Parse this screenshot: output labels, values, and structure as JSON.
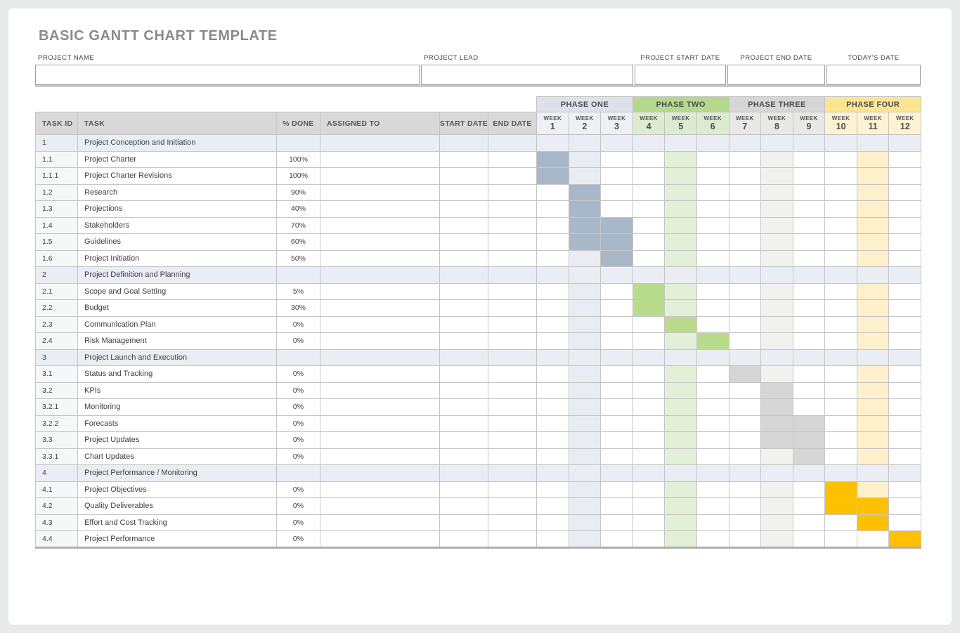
{
  "page": {
    "title": "BASIC GANTT CHART TEMPLATE"
  },
  "form": {
    "fields": [
      {
        "label": "PROJECT NAME",
        "value": ""
      },
      {
        "label": "PROJECT LEAD",
        "value": ""
      },
      {
        "label": "PROJECT START DATE",
        "value": ""
      },
      {
        "label": "PROJECT END DATE",
        "value": ""
      },
      {
        "label": "TODAY'S DATE",
        "value": ""
      }
    ]
  },
  "table": {
    "columns": [
      "TASK ID",
      "TASK",
      "% DONE",
      "ASSIGNED TO",
      "START DATE",
      "END DATE"
    ],
    "week_label": "WEEK",
    "header_bg": "#d9d9d9",
    "section_row_color": "#eaedf3",
    "task_id_col_color": "#f6f7f9",
    "phases": [
      {
        "label": "PHASE ONE",
        "weeks": [
          "1",
          "2",
          "3"
        ],
        "header_color": "#dde2ea",
        "week_header_color": "#eef0f4",
        "bar_color": "#a9b8c8",
        "shade_color": "#e9ecf2"
      },
      {
        "label": "PHASE TWO",
        "weeks": [
          "4",
          "5",
          "6"
        ],
        "header_color": "#b5d88c",
        "week_header_color": "#ddecd0",
        "bar_color": "#b9dc8c",
        "shade_color": "#e3efd6"
      },
      {
        "label": "PHASE THREE",
        "weeks": [
          "7",
          "8",
          "9"
        ],
        "header_color": "#d6d6d6",
        "week_header_color": "#e8e8e6",
        "bar_color": "#d6d6d6",
        "shade_color": "#f1f1ef"
      },
      {
        "label": "PHASE FOUR",
        "weeks": [
          "10",
          "11",
          "12"
        ],
        "header_color": "#fbe593",
        "week_header_color": "#fdf3d2",
        "bar_color": "#fec000",
        "shade_color": "#fdf0cb"
      }
    ],
    "rows": [
      {
        "id": "1",
        "task": "Project Conception and Initiation",
        "done": "",
        "section": true,
        "gantt": [
          "",
          "",
          "",
          "",
          "",
          "",
          "",
          "",
          "",
          "",
          "",
          ""
        ]
      },
      {
        "id": "1.1",
        "task": "Project Charter",
        "done": "100%",
        "section": false,
        "gantt": [
          "b",
          "s",
          "",
          "",
          "s",
          "",
          "",
          "s",
          "",
          "",
          "s",
          ""
        ]
      },
      {
        "id": "1.1.1",
        "task": "Project Charter Revisions",
        "done": "100%",
        "section": false,
        "gantt": [
          "b",
          "s",
          "",
          "",
          "s",
          "",
          "",
          "s",
          "",
          "",
          "s",
          ""
        ]
      },
      {
        "id": "1.2",
        "task": "Research",
        "done": "90%",
        "section": false,
        "gantt": [
          "",
          "b",
          "",
          "",
          "s",
          "",
          "",
          "s",
          "",
          "",
          "s",
          ""
        ]
      },
      {
        "id": "1.3",
        "task": "Projections",
        "done": "40%",
        "section": false,
        "gantt": [
          "",
          "b",
          "",
          "",
          "s",
          "",
          "",
          "s",
          "",
          "",
          "s",
          ""
        ]
      },
      {
        "id": "1.4",
        "task": "Stakeholders",
        "done": "70%",
        "section": false,
        "gantt": [
          "",
          "b",
          "b",
          "",
          "s",
          "",
          "",
          "s",
          "",
          "",
          "s",
          ""
        ]
      },
      {
        "id": "1.5",
        "task": "Guidelines",
        "done": "60%",
        "section": false,
        "gantt": [
          "",
          "b",
          "b",
          "",
          "s",
          "",
          "",
          "s",
          "",
          "",
          "s",
          ""
        ]
      },
      {
        "id": "1.6",
        "task": "Project Initiation",
        "done": "50%",
        "section": false,
        "gantt": [
          "",
          "s",
          "b",
          "",
          "s",
          "",
          "",
          "s",
          "",
          "",
          "s",
          ""
        ]
      },
      {
        "id": "2",
        "task": "Project Definition and Planning",
        "done": "",
        "section": true,
        "gantt": [
          "",
          "",
          "",
          "",
          "",
          "",
          "",
          "",
          "",
          "",
          "",
          ""
        ]
      },
      {
        "id": "2.1",
        "task": "Scope and Goal Setting",
        "done": "5%",
        "section": false,
        "gantt": [
          "",
          "s",
          "",
          "b",
          "s",
          "",
          "",
          "s",
          "",
          "",
          "s",
          ""
        ]
      },
      {
        "id": "2.2",
        "task": "Budget",
        "done": "30%",
        "section": false,
        "gantt": [
          "",
          "s",
          "",
          "b",
          "s",
          "",
          "",
          "s",
          "",
          "",
          "s",
          ""
        ]
      },
      {
        "id": "2.3",
        "task": "Communication Plan",
        "done": "0%",
        "section": false,
        "gantt": [
          "",
          "s",
          "",
          "",
          "b",
          "",
          "",
          "s",
          "",
          "",
          "s",
          ""
        ]
      },
      {
        "id": "2.4",
        "task": "Risk Management",
        "done": "0%",
        "section": false,
        "gantt": [
          "",
          "s",
          "",
          "",
          "s",
          "b",
          "",
          "s",
          "",
          "",
          "s",
          ""
        ]
      },
      {
        "id": "3",
        "task": "Project Launch and Execution",
        "done": "",
        "section": true,
        "gantt": [
          "",
          "",
          "",
          "",
          "",
          "",
          "",
          "",
          "",
          "",
          "",
          ""
        ]
      },
      {
        "id": "3.1",
        "task": "Status and Tracking",
        "done": "0%",
        "section": false,
        "gantt": [
          "",
          "s",
          "",
          "",
          "s",
          "",
          "b",
          "s",
          "",
          "",
          "s",
          ""
        ]
      },
      {
        "id": "3.2",
        "task": "KPIs",
        "done": "0%",
        "section": false,
        "gantt": [
          "",
          "s",
          "",
          "",
          "s",
          "",
          "",
          "b",
          "",
          "",
          "s",
          ""
        ]
      },
      {
        "id": "3.2.1",
        "task": "Monitoring",
        "done": "0%",
        "section": false,
        "gantt": [
          "",
          "s",
          "",
          "",
          "s",
          "",
          "",
          "b",
          "",
          "",
          "s",
          ""
        ]
      },
      {
        "id": "3.2.2",
        "task": "Forecasts",
        "done": "0%",
        "section": false,
        "gantt": [
          "",
          "s",
          "",
          "",
          "s",
          "",
          "",
          "b",
          "b",
          "",
          "s",
          ""
        ]
      },
      {
        "id": "3.3",
        "task": "Project Updates",
        "done": "0%",
        "section": false,
        "gantt": [
          "",
          "s",
          "",
          "",
          "s",
          "",
          "",
          "b",
          "b",
          "",
          "s",
          ""
        ]
      },
      {
        "id": "3.3.1",
        "task": "Chart Updates",
        "done": "0%",
        "section": false,
        "gantt": [
          "",
          "s",
          "",
          "",
          "s",
          "",
          "",
          "s",
          "b",
          "",
          "s",
          ""
        ]
      },
      {
        "id": "4",
        "task": "Project Performance / Monitoring",
        "done": "",
        "section": true,
        "gantt": [
          "",
          "",
          "",
          "",
          "",
          "",
          "",
          "",
          "",
          "",
          "",
          ""
        ]
      },
      {
        "id": "4.1",
        "task": "Project Objectives",
        "done": "0%",
        "section": false,
        "gantt": [
          "",
          "s",
          "",
          "",
          "s",
          "",
          "",
          "s",
          "",
          "b",
          "s",
          ""
        ]
      },
      {
        "id": "4.2",
        "task": "Quality Deliverables",
        "done": "0%",
        "section": false,
        "gantt": [
          "",
          "s",
          "",
          "",
          "s",
          "",
          "",
          "s",
          "",
          "b",
          "b",
          ""
        ]
      },
      {
        "id": "4.3",
        "task": "Effort and Cost Tracking",
        "done": "0%",
        "section": false,
        "gantt": [
          "",
          "s",
          "",
          "",
          "s",
          "",
          "",
          "s",
          "",
          "",
          "b",
          ""
        ]
      },
      {
        "id": "4.4",
        "task": "Project Performance",
        "done": "0%",
        "section": false,
        "gantt": [
          "",
          "s",
          "",
          "",
          "s",
          "",
          "",
          "s",
          "",
          "",
          "",
          "b"
        ]
      }
    ]
  }
}
